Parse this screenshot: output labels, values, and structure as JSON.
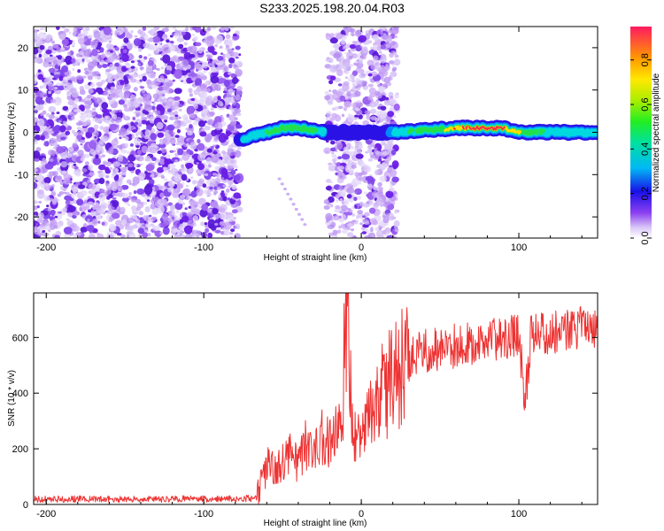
{
  "title": "S233.2025.198.20.04.R03",
  "colors": {
    "snr_line": "#ee3333",
    "ridge_core": "#ee3344",
    "scatter_dense": "#6a1ee6",
    "scatter_light": "#c9a6f5"
  },
  "colorbar": {
    "label": "Normalized spectral amplitude",
    "ticks": [
      {
        "value": 0.0,
        "label": "0.0"
      },
      {
        "value": 0.2,
        "label": "0.2"
      },
      {
        "value": 0.4,
        "label": "0.4"
      },
      {
        "value": 0.6,
        "label": "0.6"
      },
      {
        "value": 0.8,
        "label": "0.8"
      }
    ],
    "range": [
      0,
      0.95
    ]
  },
  "chart_data": [
    {
      "type": "heatmap",
      "title": "",
      "xlabel": "Height of straight line (km)",
      "ylabel": "Frequency (Hz)",
      "xlim": [
        -208,
        150
      ],
      "ylim": [
        -25,
        25
      ],
      "xticks": [
        {
          "value": -200,
          "label": "-200"
        },
        {
          "value": -100,
          "label": "-100"
        },
        {
          "value": 0,
          "label": "0"
        },
        {
          "value": 100,
          "label": "100"
        }
      ],
      "yticks": [
        {
          "value": -20,
          "label": "-20"
        },
        {
          "value": -10,
          "label": "-10"
        },
        {
          "value": 0,
          "label": "0"
        },
        {
          "value": 10,
          "label": "10"
        },
        {
          "value": 20,
          "label": "20"
        }
      ],
      "noise_regions": [
        {
          "x": [
            -208,
            -77
          ],
          "density": "high"
        },
        {
          "x": [
            -22,
            23
          ],
          "density": "medium"
        }
      ],
      "ridge": {
        "x": [
          -77,
          -70,
          -60,
          -50,
          -40,
          -30,
          -22,
          -15,
          -5,
          5,
          15,
          25,
          40,
          60,
          80,
          90,
          100,
          120,
          150
        ],
        "frequency_hz": [
          -2,
          -1,
          0,
          1,
          1,
          0.5,
          0,
          0,
          0,
          0,
          0,
          0,
          0.5,
          1,
          1,
          1,
          0,
          0,
          0
        ],
        "amplitude": [
          0.35,
          0.45,
          0.55,
          0.6,
          0.65,
          0.6,
          0.3,
          0.25,
          0.3,
          0.3,
          0.3,
          0.5,
          0.6,
          0.8,
          0.9,
          0.85,
          0.7,
          0.5,
          0.45
        ]
      }
    },
    {
      "type": "line",
      "title": "",
      "xlabel": "Height of straight line (km)",
      "ylabel": "SNR (10 * v/v)",
      "xlim": [
        -208,
        150
      ],
      "ylim": [
        0,
        760
      ],
      "xticks": [
        {
          "value": -200,
          "label": "-200"
        },
        {
          "value": -100,
          "label": "-100"
        },
        {
          "value": 0,
          "label": "0"
        },
        {
          "value": 100,
          "label": "100"
        }
      ],
      "yticks": [
        {
          "value": 0,
          "label": "0"
        },
        {
          "value": 200,
          "label": "200"
        },
        {
          "value": 400,
          "label": "400"
        },
        {
          "value": 600,
          "label": "600"
        }
      ],
      "series": [
        {
          "x": [
            -208,
            -180,
            -150,
            -120,
            -90,
            -66,
            -62,
            -58,
            -55,
            -50,
            -45,
            -40,
            -35,
            -30,
            -25,
            -20,
            -15,
            -12,
            -10,
            -5,
            -2,
            0,
            5,
            10,
            15,
            20,
            25,
            30,
            35,
            40,
            50,
            60,
            70,
            80,
            90,
            100,
            104,
            108,
            115,
            125,
            135,
            150
          ],
          "y": [
            18,
            20,
            18,
            20,
            20,
            22,
            100,
            160,
            120,
            150,
            190,
            140,
            220,
            170,
            260,
            220,
            250,
            280,
            700,
            260,
            230,
            280,
            340,
            360,
            420,
            450,
            490,
            520,
            540,
            550,
            560,
            570,
            580,
            590,
            600,
            610,
            370,
            620,
            610,
            620,
            630,
            640
          ]
        }
      ]
    }
  ]
}
